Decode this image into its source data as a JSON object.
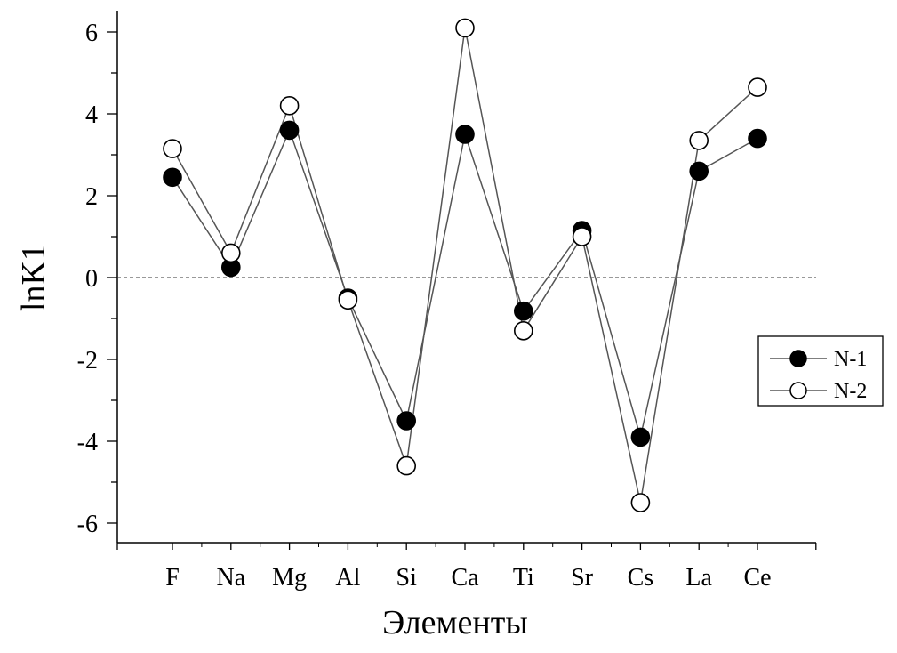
{
  "chart_data": {
    "type": "line",
    "title": "",
    "xlabel": "Элементы",
    "ylabel": "lnK1",
    "categories": [
      "F",
      "Na",
      "Mg",
      "Al",
      "Si",
      "Ca",
      "Ti",
      "Sr",
      "Cs",
      "La",
      "Ce"
    ],
    "ylim": [
      -6.5,
      6.5
    ],
    "yticks": [
      -6,
      -4,
      -2,
      0,
      2,
      4,
      6
    ],
    "ytick_labels": [
      "-6",
      "-4",
      "-2",
      "0",
      "2",
      "4",
      "6"
    ],
    "reference_line": 0,
    "grid": false,
    "legend_position": "right",
    "series": [
      {
        "name": "N-1",
        "marker": "filled-circle",
        "values": [
          2.45,
          0.25,
          3.6,
          -0.5,
          -3.5,
          3.5,
          -0.82,
          1.15,
          -3.9,
          2.6,
          3.4
        ]
      },
      {
        "name": "N-2",
        "marker": "open-circle",
        "values": [
          3.15,
          0.6,
          4.2,
          -0.55,
          -4.6,
          6.1,
          -1.3,
          1.0,
          -5.5,
          3.35,
          4.65
        ]
      }
    ],
    "colors": {
      "line": "#555555",
      "marker_edge": "#000000",
      "filled": "#000000",
      "open": "#ffffff"
    }
  }
}
